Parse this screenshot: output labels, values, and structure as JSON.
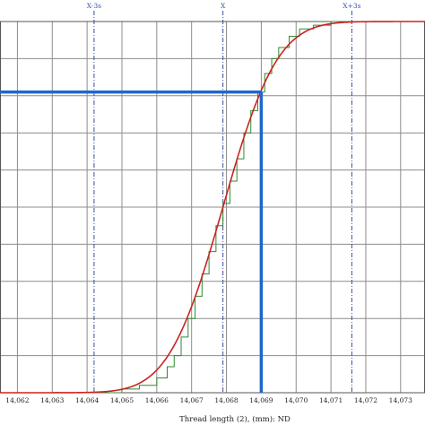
{
  "chart_data": {
    "type": "line",
    "title": "",
    "xlabel": "Thread length (2), (mm): ND",
    "ylabel": "",
    "xlim": [
      14.0615,
      14.0737
    ],
    "ylim": [
      0,
      1
    ],
    "x_ticks": [
      14.062,
      14.063,
      14.064,
      14.065,
      14.066,
      14.067,
      14.068,
      14.069,
      14.07,
      14.071,
      14.072,
      14.073
    ],
    "x_tick_labels": [
      "14,062",
      "14,063",
      "14,064",
      "14,065",
      "14,066",
      "14,067",
      "14,068",
      "14,069",
      "14,070",
      "14,071",
      "14,072",
      "14,073"
    ],
    "y_gridlines": 10,
    "grid": true,
    "markers": [
      {
        "label": "X-3s",
        "x": 14.0642
      },
      {
        "label": "X",
        "x": 14.0679
      },
      {
        "label": "X+3s",
        "x": 14.0716
      }
    ],
    "series": [
      {
        "kind": "normal-cdf",
        "mean": 14.0679,
        "sd": 0.00123,
        "color": "#cc2222"
      },
      {
        "kind": "empirical-step",
        "color": "#2f8a2f",
        "x": [
          14.065,
          14.0655,
          14.066,
          14.0663,
          14.0665,
          14.0667,
          14.0669,
          14.0671,
          14.0673,
          14.0675,
          14.0677,
          14.0679,
          14.0681,
          14.0683,
          14.0685,
          14.0687,
          14.0689,
          14.0691,
          14.0693,
          14.0695,
          14.0698,
          14.0701,
          14.0705,
          14.071
        ],
        "y": [
          0.01,
          0.02,
          0.04,
          0.07,
          0.1,
          0.15,
          0.2,
          0.26,
          0.32,
          0.38,
          0.45,
          0.51,
          0.57,
          0.63,
          0.7,
          0.76,
          0.81,
          0.86,
          0.9,
          0.93,
          0.96,
          0.98,
          0.99,
          1.0
        ]
      }
    ],
    "reference": {
      "x": 14.069,
      "y": 0.81,
      "color": "#1f66cc"
    }
  }
}
